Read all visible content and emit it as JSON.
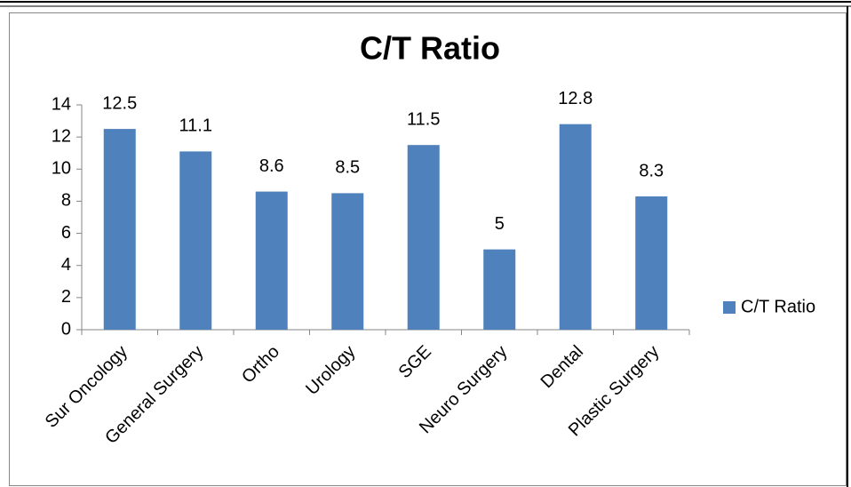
{
  "chart_data": {
    "type": "bar",
    "title": "C/T Ratio",
    "categories": [
      "Sur Oncology",
      "General Surgery",
      "Ortho",
      "Urology",
      "SGE",
      "Neuro Surgery",
      "Dental",
      "Plastic Surgery"
    ],
    "series": [
      {
        "name": "C/T Ratio",
        "color": "#4f81bd",
        "values": [
          12.5,
          11.1,
          8.6,
          8.5,
          11.5,
          5,
          12.8,
          8.3
        ]
      }
    ],
    "ylim": [
      0,
      14
    ],
    "yticks": [
      0,
      2,
      4,
      6,
      8,
      10,
      12,
      14
    ],
    "grid": false,
    "legend": "right"
  }
}
